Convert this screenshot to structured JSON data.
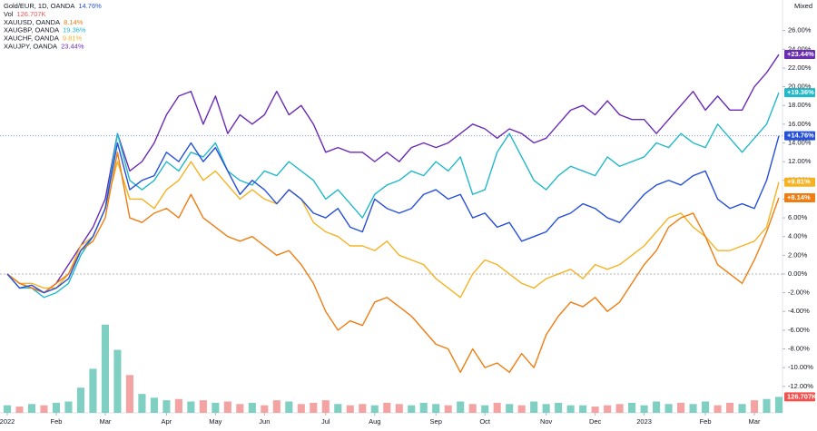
{
  "chart_data": {
    "type": "line",
    "axis_title": "Mixed",
    "categories": [
      "2022",
      null,
      null,
      null,
      "Feb",
      null,
      null,
      null,
      "Mar",
      null,
      null,
      null,
      null,
      "Apr",
      null,
      null,
      null,
      "May",
      null,
      null,
      null,
      "Jun",
      null,
      null,
      null,
      null,
      "Jul",
      null,
      null,
      null,
      "Aug",
      null,
      null,
      null,
      null,
      "Sep",
      null,
      null,
      null,
      "Oct",
      null,
      null,
      null,
      null,
      "Nov",
      null,
      null,
      null,
      "Dec",
      null,
      null,
      null,
      "2023",
      null,
      null,
      null,
      null,
      "Feb",
      null,
      null,
      null,
      "Mar",
      null,
      null
    ],
    "ylim": [
      -14.83,
      29.26
    ],
    "yticks": [
      {
        "value": 26,
        "label": "26.00%"
      },
      {
        "value": 24,
        "label": "24.00%"
      },
      {
        "value": 22,
        "label": "22.00%"
      },
      {
        "value": 20,
        "label": "20.00%"
      },
      {
        "value": 18,
        "label": "18.00%"
      },
      {
        "value": 16,
        "label": "16.00%"
      },
      {
        "value": 14,
        "label": "14.00%"
      },
      {
        "value": 12,
        "label": "12.00%"
      },
      {
        "value": 10,
        "label": "10.00%"
      },
      {
        "value": 8,
        "label": "8.00%"
      },
      {
        "value": 6,
        "label": "6.00%"
      },
      {
        "value": 4,
        "label": "4.00%"
      },
      {
        "value": 2,
        "label": "2.00%"
      },
      {
        "value": 0,
        "label": "0.00%"
      },
      {
        "value": -2,
        "label": "-2.00%"
      },
      {
        "value": -4,
        "label": "-4.00%"
      },
      {
        "value": -6,
        "label": "-6.00%"
      },
      {
        "value": -8,
        "label": "-8.00%"
      },
      {
        "value": -10,
        "label": "-10.00%"
      },
      {
        "value": -12,
        "label": "-12.00%"
      }
    ],
    "series": [
      {
        "name": "Gold/EUR, 1D, OANDA",
        "color": "#2750d8",
        "value_label": "14.76%",
        "tag_label": "+14.76%",
        "values": [
          0,
          -1.5,
          -1.2,
          -2,
          -1.5,
          -0.5,
          2.5,
          4,
          7,
          14,
          9,
          10,
          10.5,
          13,
          12,
          14,
          12,
          13.5,
          11,
          8.5,
          10,
          9,
          7.5,
          9,
          8,
          6.5,
          6,
          7,
          5,
          4.5,
          8,
          7,
          6.5,
          7,
          8.5,
          9,
          8,
          8.5,
          6,
          6.5,
          5,
          5.5,
          3.5,
          4,
          4.5,
          6,
          6.5,
          7.5,
          7,
          6,
          5.5,
          7,
          8.5,
          9.5,
          10,
          9.5,
          10.5,
          11,
          8,
          7,
          7.5,
          7,
          10,
          14.76
        ]
      },
      {
        "name": "XAUUSD, OANDA",
        "color": "#ef7d12",
        "value_label": "8.14%",
        "tag_label": "+8.14%",
        "values": [
          0,
          -1,
          -1.5,
          -2,
          -1,
          0,
          2.5,
          3.5,
          6,
          13,
          6,
          5.5,
          6.5,
          7,
          6,
          8.5,
          6,
          5,
          4,
          3.5,
          4,
          3,
          2,
          2.5,
          1,
          -1,
          -4,
          -6,
          -5,
          -5.5,
          -3,
          -2.5,
          -3.5,
          -4.5,
          -6,
          -7.5,
          -8,
          -10.5,
          -8,
          -10,
          -9.5,
          -10.5,
          -8.5,
          -10,
          -6.5,
          -4.5,
          -3,
          -3.5,
          -2.5,
          -4,
          -3,
          -1,
          1,
          2.5,
          5,
          6,
          6.5,
          4,
          1,
          0,
          -1,
          1.5,
          4.5,
          8.14
        ]
      },
      {
        "name": "XAUGBP, OANDA",
        "color": "#22b8c9",
        "value_label": "19.36%",
        "tag_label": "+19.36%",
        "values": [
          0,
          -1.5,
          -1.5,
          -2.5,
          -2,
          -1,
          2,
          4,
          7,
          15,
          10,
          9,
          10,
          12,
          11,
          13,
          12.5,
          14,
          11,
          10,
          9.5,
          11,
          10.5,
          12,
          11,
          10,
          8,
          9,
          7.5,
          6,
          8.5,
          9.5,
          10,
          11,
          10.5,
          12,
          11,
          12.5,
          8.5,
          9,
          13,
          15,
          12.5,
          10,
          9,
          10.5,
          11.5,
          11,
          10.5,
          12.5,
          11.5,
          12,
          12.5,
          14,
          13.5,
          15,
          14,
          13.5,
          16,
          14.5,
          13,
          14.5,
          16,
          19.36
        ]
      },
      {
        "name": "XAUCHF, OANDA",
        "color": "#f5b324",
        "value_label": "9.81%",
        "tag_label": "+9.81%",
        "values": [
          0,
          -1,
          -1,
          -1.5,
          -1.5,
          0,
          3,
          4,
          7,
          12,
          8,
          8,
          7,
          9,
          10,
          12,
          10,
          11,
          9.5,
          8,
          9,
          8,
          7.5,
          9,
          8,
          5.5,
          4.5,
          4,
          3,
          3,
          2.5,
          3.5,
          2,
          1.5,
          1,
          -0.5,
          -1.5,
          -2.5,
          0,
          1.5,
          1,
          0,
          -1,
          -1.5,
          -0.5,
          0,
          0.5,
          -0.5,
          1,
          0.5,
          1,
          2,
          3,
          4.5,
          6,
          6.5,
          5,
          4,
          2.5,
          2.5,
          3,
          3.5,
          5,
          9.81
        ]
      },
      {
        "name": "XAUJPY, OANDA",
        "color": "#6a2bb5",
        "value_label": "23.44%",
        "tag_label": "+23.44%",
        "values": [
          0,
          -1,
          -1.5,
          -2,
          -1,
          1,
          3,
          5,
          8,
          15,
          11,
          12,
          14,
          17,
          19,
          19.5,
          16,
          19,
          15,
          17,
          16,
          17,
          19.5,
          17,
          18,
          16,
          13,
          13.5,
          13,
          13,
          12,
          13,
          12,
          13.5,
          14,
          13.5,
          14,
          15,
          16,
          15.5,
          14.5,
          15.5,
          15,
          14,
          14.5,
          16,
          17.5,
          18,
          17,
          18.5,
          17,
          16.5,
          16.5,
          15,
          16.5,
          18,
          19.5,
          17.5,
          19,
          17.5,
          17.5,
          20,
          21.5,
          23.44
        ]
      }
    ],
    "volume": {
      "name": "Vol",
      "value_label": "126.707K",
      "tag_label": "126.707K",
      "up_color": "#7fcfc3",
      "down_color": "#f4a3a3",
      "vlim": [
        0,
        900
      ],
      "values": [
        60,
        50,
        70,
        60,
        80,
        90,
        200,
        350,
        700,
        500,
        300,
        150,
        120,
        100,
        110,
        90,
        100,
        80,
        90,
        70,
        80,
        60,
        100,
        90,
        70,
        80,
        100,
        70,
        60,
        70,
        60,
        80,
        70,
        60,
        80,
        70,
        60,
        90,
        70,
        60,
        80,
        70,
        60,
        90,
        70,
        80,
        60,
        60,
        50,
        60,
        70,
        80,
        60,
        90,
        70,
        80,
        70,
        90,
        60,
        80,
        70,
        100,
        110,
        126.707
      ]
    }
  }
}
